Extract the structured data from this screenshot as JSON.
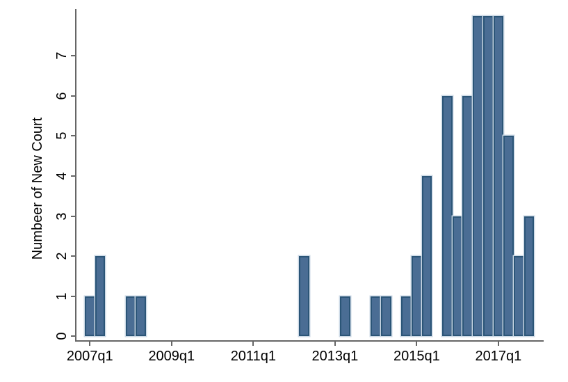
{
  "chart_data": {
    "type": "bar",
    "subtype": "histogram",
    "title": "",
    "xlabel": "",
    "ylabel": "Numbeer of New Court",
    "x_tick_labels": [
      "2007q1",
      "2009q1",
      "2011q1",
      "2013q1",
      "2015q1",
      "2017q1"
    ],
    "x_ticks_every_n_quarters": 8,
    "y_tick_labels": [
      "0",
      "1",
      "2",
      "3",
      "4",
      "5",
      "6",
      "7"
    ],
    "ylim": [
      0,
      8.2
    ],
    "grid": "off",
    "legend": "none",
    "bar_width_quarters": 1,
    "bars": [
      {
        "quarter": "2007q1",
        "value": 1
      },
      {
        "quarter": "2007q2",
        "value": 2
      },
      {
        "quarter": "2008q1",
        "value": 1
      },
      {
        "quarter": "2008q2",
        "value": 1
      },
      {
        "quarter": "2012q2",
        "value": 2
      },
      {
        "quarter": "2013q2",
        "value": 1
      },
      {
        "quarter": "2014q1",
        "value": 1
      },
      {
        "quarter": "2014q2",
        "value": 1
      },
      {
        "quarter": "2014q4",
        "value": 1
      },
      {
        "quarter": "2015q1",
        "value": 2
      },
      {
        "quarter": "2015q2",
        "value": 4
      },
      {
        "quarter": "2015q4",
        "value": 6
      },
      {
        "quarter": "2016q1",
        "value": 3
      },
      {
        "quarter": "2016q2",
        "value": 6
      },
      {
        "quarter": "2016q3",
        "value": 8
      },
      {
        "quarter": "2016q4",
        "value": 8
      },
      {
        "quarter": "2017q1",
        "value": 8
      },
      {
        "quarter": "2017q2",
        "value": 5
      },
      {
        "quarter": "2017q3",
        "value": 2
      },
      {
        "quarter": "2017q4",
        "value": 3
      }
    ]
  },
  "colors": {
    "bar_fill": "#4a6d94",
    "bar_border": "#2b5577",
    "bar_halo": "#ccd9e6",
    "axis": "#666666",
    "text": "#000000",
    "background": "#ffffff"
  }
}
